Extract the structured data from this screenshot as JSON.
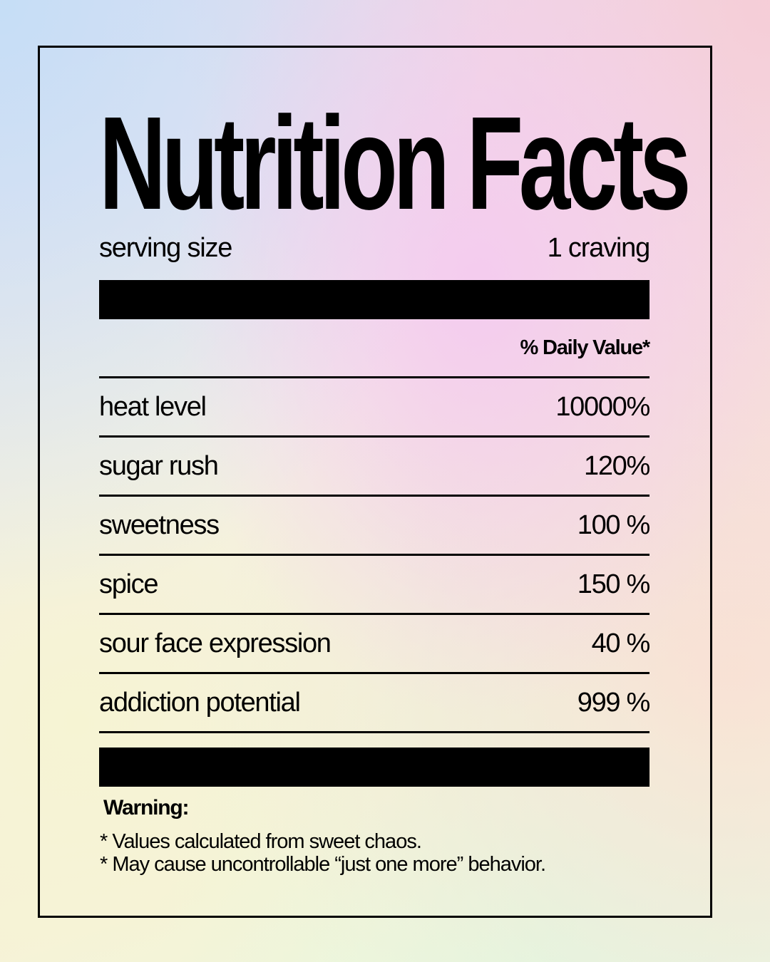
{
  "label": {
    "title": "Nutrition Facts",
    "serving": {
      "label": "serving size",
      "value": "1 craving"
    },
    "daily_value_header": "% Daily Value*",
    "rows": [
      {
        "name": "heat level",
        "value": "10000%"
      },
      {
        "name": "sugar rush",
        "value": "120%"
      },
      {
        "name": "sweetness",
        "value": "100 %"
      },
      {
        "name": "spice",
        "value": "150 %"
      },
      {
        "name": "sour face expression",
        "value": "40 %"
      },
      {
        "name": "addiction potential",
        "value": "999 %"
      }
    ],
    "warning_title": "Warning:",
    "notes": [
      "* Values calculated from sweet chaos.",
      "* May cause uncontrollable “just one more” behavior."
    ]
  }
}
